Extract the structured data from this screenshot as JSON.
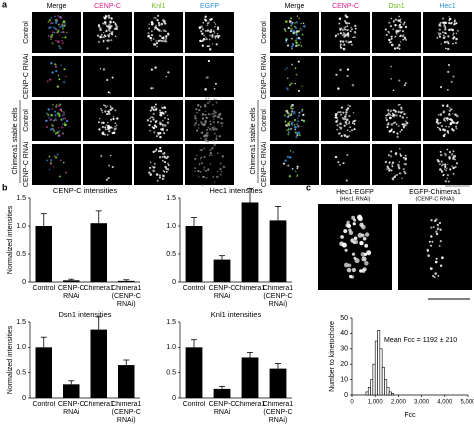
{
  "panel_a": {
    "label": "a",
    "left": {
      "columns": [
        {
          "text": "Merge",
          "color": "#000000"
        },
        {
          "text": "CENP-C",
          "color": "#d6218a"
        },
        {
          "text": "Knl1",
          "color": "#6bbf20"
        },
        {
          "text": "EGFP",
          "color": "#2a8fd6"
        }
      ],
      "rows": [
        "Control",
        "CENP-C RNAi",
        "Control",
        "CENP-C RNAi"
      ],
      "group_label": "Chimera1  stable cells"
    },
    "right": {
      "columns": [
        {
          "text": "Merge",
          "color": "#000000"
        },
        {
          "text": "CENP-C",
          "color": "#d6218a"
        },
        {
          "text": "Dsn1",
          "color": "#6bbf20"
        },
        {
          "text": "Hec1",
          "color": "#2a8fd6"
        }
      ],
      "rows": [
        "Control",
        "CENP-C RNAi",
        "Control",
        "CENP-C RNAi"
      ],
      "group_label": "Chimera1 stable cells"
    }
  },
  "panel_b": {
    "label": "b"
  },
  "panel_c": {
    "label": "c",
    "images": [
      {
        "title": "Hec1-EGFP",
        "subtitle": "(Hec1 RNAi)"
      },
      {
        "title": "EGFP-Chimera1",
        "subtitle": "(CENP-C RNAi)"
      }
    ]
  },
  "chart_data": [
    {
      "type": "bar",
      "title": "CENP-C intensities",
      "y_label": "Normalized intensities",
      "categories": [
        "Control",
        "CENP-C RNAi",
        "Chimera1",
        "Chimera1 (CENP-C RNAi)"
      ],
      "values": [
        1.0,
        0.03,
        1.05,
        0.02
      ],
      "errors": [
        0.22,
        0.02,
        0.22,
        0.02
      ],
      "color": "#000000",
      "ylim": [
        0,
        1.5
      ],
      "yticks": [
        0,
        0.5,
        {
          "value": 1,
          "label": "1.0"
        },
        1.5
      ]
    },
    {
      "type": "bar",
      "title": "Hec1 intensities",
      "categories": [
        "Control",
        "CENP-C RNAi",
        "Chimera1",
        "Chimera1 (CENP-C RNAi)"
      ],
      "values": [
        1.0,
        0.4,
        1.42,
        1.1
      ],
      "errors": [
        0.15,
        0.07,
        0.25,
        0.25
      ],
      "color": "#000000",
      "ylim": [
        0,
        1.5
      ],
      "yticks": [
        0,
        0.5,
        {
          "value": 1,
          "label": "1.0"
        },
        1.5
      ]
    },
    {
      "type": "bar",
      "title": "Dsn1 intensities",
      "y_label": "Normalized intensities",
      "categories": [
        "Control",
        "CENP-C RNAi",
        "Chimera1",
        "Chimera1 (CENP-C RNAi)"
      ],
      "values": [
        1.0,
        0.27,
        1.35,
        0.65
      ],
      "errors": [
        0.2,
        0.07,
        0.25,
        0.1
      ],
      "color": "#000000",
      "ylim": [
        0,
        1.5
      ],
      "yticks": [
        0,
        0.5,
        {
          "value": 1,
          "label": "1.0"
        },
        1.5
      ]
    },
    {
      "type": "bar",
      "title": "Knl1 intensities",
      "categories": [
        "Control",
        "CENP-C RNAi",
        "Chimera1",
        "Chimera1 (CENP-C RNAi)"
      ],
      "values": [
        1.0,
        0.18,
        0.8,
        0.58
      ],
      "errors": [
        0.15,
        0.05,
        0.1,
        0.1
      ],
      "color": "#000000",
      "ylim": [
        0,
        1.5
      ],
      "yticks": [
        0,
        0.5,
        {
          "value": 1,
          "label": "1.0"
        },
        1.5
      ]
    },
    {
      "type": "histogram",
      "x_label": "Fcc",
      "y_label": "Number to kinetochore",
      "annotation": "Mean Fcc = 1192 ± 210",
      "bins": [
        600,
        700,
        800,
        900,
        1000,
        1100,
        1200,
        1300,
        1400,
        1500,
        1600,
        1700,
        1800
      ],
      "values": [
        2,
        5,
        10,
        20,
        35,
        42,
        30,
        18,
        10,
        5,
        2,
        1
      ],
      "color": "#ffffff",
      "xlim": [
        0,
        5000
      ],
      "xticks": [
        0,
        {
          "value": 1000,
          "label": "1,000"
        },
        {
          "value": 2000,
          "label": "2,000"
        },
        {
          "value": 3000,
          "label": "3,000"
        },
        {
          "value": 4000,
          "label": "4,000"
        },
        {
          "value": 5000,
          "label": "5,000"
        }
      ],
      "ylim": [
        0,
        50
      ],
      "yticks": [
        0,
        10,
        20,
        30,
        40,
        50
      ]
    }
  ]
}
